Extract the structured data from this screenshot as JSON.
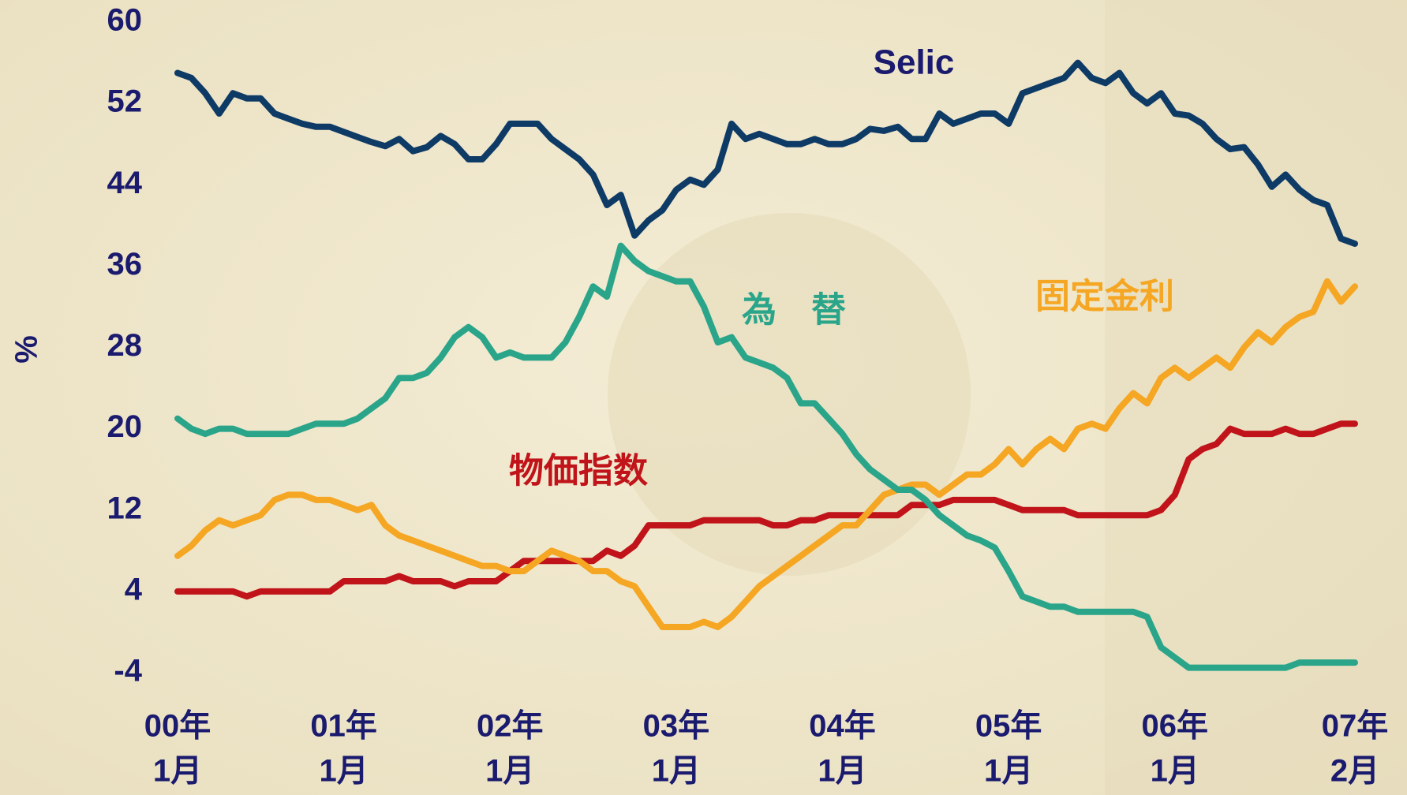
{
  "chart_data": {
    "type": "line",
    "y_label": "%",
    "ylim": [
      -4,
      60
    ],
    "yticks": [
      -4,
      4,
      12,
      20,
      28,
      36,
      44,
      52,
      60
    ],
    "categories": [
      [
        "00年",
        "1月"
      ],
      null,
      null,
      null,
      null,
      null,
      null,
      null,
      null,
      null,
      null,
      null,
      [
        "01年",
        "1月"
      ],
      null,
      null,
      null,
      null,
      null,
      null,
      null,
      null,
      null,
      null,
      null,
      [
        "02年",
        "1月"
      ],
      null,
      null,
      null,
      null,
      null,
      null,
      null,
      null,
      null,
      null,
      null,
      [
        "03年",
        "1月"
      ],
      null,
      null,
      null,
      null,
      null,
      null,
      null,
      null,
      null,
      null,
      null,
      [
        "04年",
        "1月"
      ],
      null,
      null,
      null,
      null,
      null,
      null,
      null,
      null,
      null,
      null,
      null,
      [
        "05年",
        "1月"
      ],
      null,
      null,
      null,
      null,
      null,
      null,
      null,
      null,
      null,
      null,
      null,
      [
        "06年",
        "1月"
      ],
      null,
      null,
      null,
      null,
      null,
      null,
      null,
      null,
      null,
      null,
      null,
      null,
      [
        "07年",
        "2月"
      ]
    ],
    "series": [
      {
        "name": "Selic",
        "color": "#0e3a66",
        "values": [
          55,
          54.5,
          53,
          51,
          53,
          52.5,
          52.5,
          51,
          50.5,
          50,
          49.7,
          49.7,
          49.2,
          48.7,
          48.2,
          47.8,
          48.5,
          47.3,
          47.7,
          48.8,
          48,
          46.5,
          46.5,
          48,
          50,
          50,
          50,
          48.5,
          47.5,
          46.5,
          45,
          42,
          43,
          39,
          40.5,
          41.5,
          43.5,
          44.5,
          44,
          45.5,
          50,
          48.5,
          49,
          48.5,
          48,
          48,
          48.5,
          48,
          48,
          48.5,
          49.5,
          49.3,
          49.7,
          48.5,
          48.5,
          51,
          50,
          50.5,
          51,
          51,
          50,
          53,
          53.5,
          54,
          54.5,
          56,
          54.5,
          54,
          55,
          53,
          52,
          53,
          51,
          50.8,
          50,
          48.5,
          47.5,
          47.7,
          46,
          43.8,
          45,
          43.5,
          42.5,
          42,
          38.7,
          38.2
        ]
      },
      {
        "name": "為　替",
        "color": "#2aa58a",
        "values": [
          21,
          20,
          19.5,
          20,
          20,
          19.5,
          19.5,
          19.5,
          19.5,
          20,
          20.5,
          20.5,
          20.5,
          21,
          22,
          23,
          25,
          25,
          25.5,
          27,
          29,
          30,
          29,
          27,
          27.5,
          27,
          27,
          27,
          28.5,
          31,
          34,
          33,
          38,
          36.5,
          35.5,
          35,
          34.5,
          34.5,
          32,
          28.5,
          29,
          27,
          26.5,
          26,
          25,
          22.5,
          22.5,
          21,
          19.5,
          17.5,
          16,
          15,
          14,
          14,
          13,
          11.5,
          10.5,
          9.5,
          9,
          8.3,
          6,
          3.5,
          3,
          2.5,
          2.5,
          2,
          2,
          2,
          2,
          2,
          1.5,
          -1.5,
          -2.5,
          -3.5,
          -3.5,
          -3.5,
          -3.5,
          -3.5,
          -3.5,
          -3.5,
          -3.5,
          -3,
          -3,
          -3,
          -3,
          -3
        ]
      },
      {
        "name": "物価指数",
        "color": "#c0141a",
        "values": [
          4,
          4,
          4,
          4,
          4,
          3.5,
          4,
          4,
          4,
          4,
          4,
          4,
          5,
          5,
          5,
          5,
          5.5,
          5,
          5,
          5,
          4.5,
          5,
          5,
          5,
          6,
          7,
          7,
          7,
          7,
          7,
          7,
          8,
          7.5,
          8.5,
          10.5,
          10.5,
          10.5,
          10.5,
          11,
          11,
          11,
          11,
          11,
          10.5,
          10.5,
          11,
          11,
          11.5,
          11.5,
          11.5,
          11.5,
          11.5,
          11.5,
          12.5,
          12.5,
          12.5,
          13,
          13,
          13,
          13,
          12.5,
          12,
          12,
          12,
          12,
          11.5,
          11.5,
          11.5,
          11.5,
          11.5,
          11.5,
          12,
          13.5,
          17,
          18,
          18.5,
          20,
          19.5,
          19.5,
          19.5,
          20,
          19.5,
          19.5,
          20,
          20.5,
          20.5
        ]
      },
      {
        "name": "固定金利",
        "color": "#f5a623",
        "values": [
          7.5,
          8.5,
          10,
          11,
          10.5,
          11,
          11.5,
          13,
          13.5,
          13.5,
          13,
          13,
          12.5,
          12,
          12.5,
          10.5,
          9.5,
          9,
          8.5,
          8,
          7.5,
          7,
          6.5,
          6.5,
          6,
          6,
          7,
          8,
          7.5,
          7,
          6,
          6,
          5,
          4.5,
          2.5,
          0.5,
          0.5,
          0.5,
          1,
          0.5,
          1.5,
          3,
          4.5,
          5.5,
          6.5,
          7.5,
          8.5,
          9.5,
          10.5,
          10.5,
          12,
          13.5,
          14,
          14.5,
          14.5,
          13.5,
          14.5,
          15.5,
          15.5,
          16.5,
          18,
          16.5,
          18,
          19,
          18,
          20,
          20.5,
          20,
          22,
          23.5,
          22.5,
          25,
          26,
          25,
          26,
          27,
          26,
          28,
          29.5,
          28.5,
          30,
          31,
          31.5,
          34.5,
          32.5,
          34
        ]
      }
    ]
  }
}
